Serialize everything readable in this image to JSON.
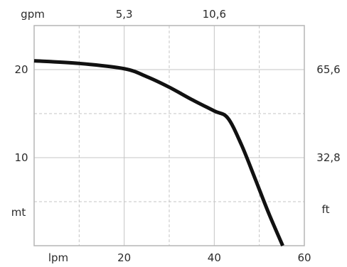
{
  "chart_data": {
    "type": "line",
    "title": "",
    "grid": true,
    "x": {
      "unit_label": "lpm",
      "ticks": [
        20,
        40,
        60
      ],
      "range": [
        0,
        60
      ]
    },
    "x_top": {
      "unit_label": "gpm",
      "ticks": [
        {
          "at_lpm": 20,
          "label": "5,3"
        },
        {
          "at_lpm": 40,
          "label": "10,6"
        }
      ]
    },
    "y": {
      "unit_label": "mt",
      "ticks": [
        10,
        20
      ],
      "range": [
        0,
        25
      ]
    },
    "y_right": {
      "unit_label": "ft",
      "ticks": [
        {
          "at_mt": 20,
          "label": "65,6"
        },
        {
          "at_mt": 10,
          "label": "32,8"
        }
      ]
    },
    "series": [
      {
        "color": "#111111",
        "points": [
          [
            0,
            21.0
          ],
          [
            10,
            20.7
          ],
          [
            20,
            20.1
          ],
          [
            25,
            19.2
          ],
          [
            30,
            18.0
          ],
          [
            35,
            16.6
          ],
          [
            40,
            15.3
          ],
          [
            43,
            14.5
          ],
          [
            46,
            11.5
          ],
          [
            49,
            7.7
          ],
          [
            52,
            3.8
          ],
          [
            55.2,
            0
          ]
        ]
      }
    ]
  }
}
